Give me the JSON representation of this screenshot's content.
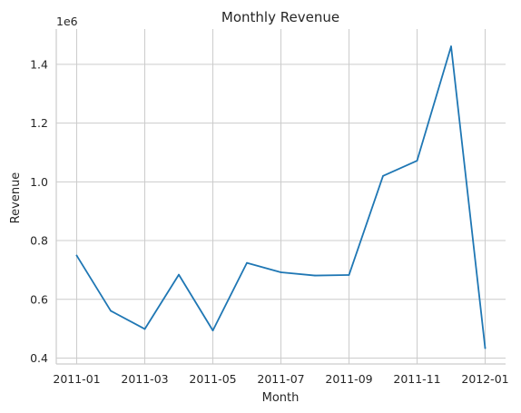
{
  "chart_data": {
    "type": "line",
    "title": "Monthly Revenue",
    "xlabel": "Month",
    "ylabel": "Revenue",
    "y_offset_label": "1e6",
    "grid": true,
    "line_color": "#1f77b4",
    "x_ticks": [
      "2011-01",
      "2011-03",
      "2011-05",
      "2011-07",
      "2011-09",
      "2011-11",
      "2012-01"
    ],
    "y_ticks": [
      "0.4",
      "0.6",
      "0.8",
      "1.0",
      "1.2",
      "1.4"
    ],
    "ylim": [
      0.38,
      1.52
    ],
    "series": [
      {
        "x": [
          "2011-01",
          "2011-02",
          "2011-03",
          "2011-04",
          "2011-05",
          "2011-06",
          "2011-07",
          "2011-08",
          "2011-09",
          "2011-10",
          "2011-11",
          "2011-12",
          "2012-01"
        ],
        "values": [
          0.749,
          0.561,
          0.499,
          0.684,
          0.494,
          0.724,
          0.692,
          0.681,
          0.683,
          1.02,
          1.072,
          1.461,
          0.434
        ]
      }
    ]
  }
}
